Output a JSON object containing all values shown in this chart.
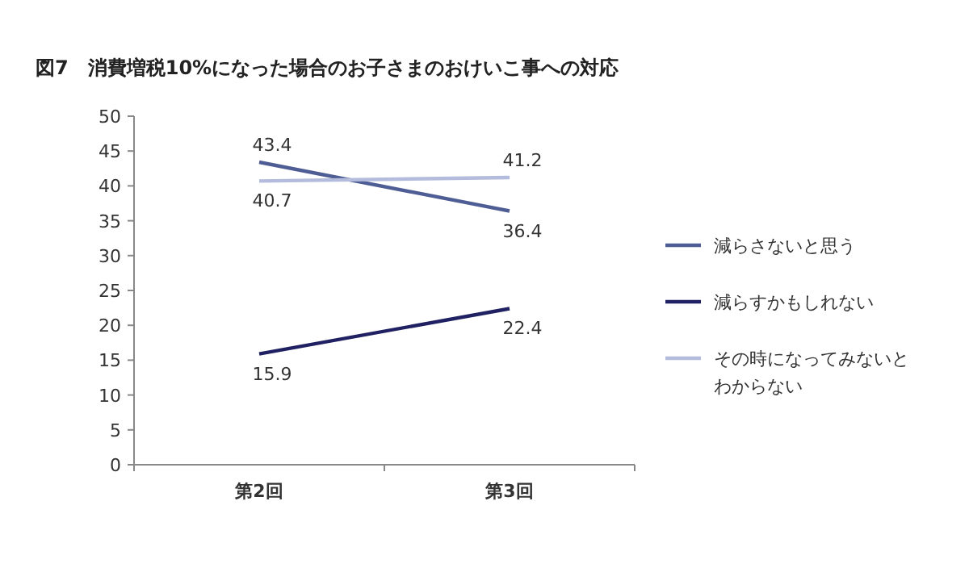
{
  "chart_data": {
    "type": "line",
    "title": "図7　消費増税10%になった場合のお子さまのおけいこ事への対応",
    "categories": [
      "第2回",
      "第3回"
    ],
    "series": [
      {
        "name": "減らさないと思う",
        "color": "#4f5d95",
        "values": [
          43.4,
          36.4
        ]
      },
      {
        "name": "減らすかもしれない",
        "color": "#1f2163",
        "values": [
          15.9,
          22.4
        ]
      },
      {
        "name": "その時になってみないとわからない",
        "color": "#b3bcdc",
        "values": [
          40.7,
          41.2
        ]
      }
    ],
    "ylim": [
      0,
      50
    ],
    "yticks": [
      0,
      5,
      10,
      15,
      20,
      25,
      30,
      35,
      40,
      45,
      50
    ],
    "data_labels": true,
    "legend": "right",
    "grid": false,
    "marker": "none",
    "line_style": "solid"
  }
}
